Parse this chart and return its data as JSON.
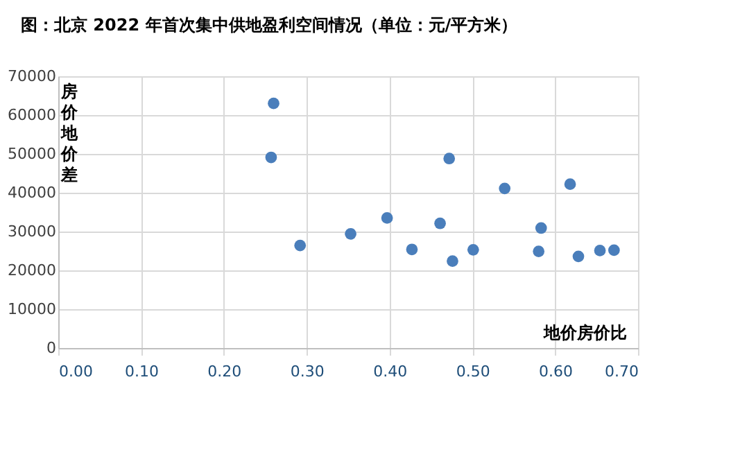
{
  "chart_data": {
    "type": "scatter",
    "title": "图：北京 2022 年首次集中供地盈利空间情况（单位：元/平方米）",
    "xlabel": "地价房价比",
    "ylabel": "房价地价差",
    "x": [
      0.26,
      0.257,
      0.292,
      0.353,
      0.397,
      0.427,
      0.461,
      0.472,
      0.476,
      0.501,
      0.539,
      0.58,
      0.583,
      0.618,
      0.628,
      0.654,
      0.671
    ],
    "series": [
      {
        "color": "#4a7ebb",
        "values": [
          63000,
          49100,
          26400,
          29400,
          33500,
          25400,
          32100,
          48800,
          22400,
          25300,
          41100,
          24900,
          30900,
          42200,
          23600,
          25100,
          25200
        ]
      }
    ],
    "xlim": [
      0,
      0.7
    ],
    "xticks": [
      {
        "value": 0,
        "label": "0.00"
      },
      {
        "value": 0.1,
        "label": "0.10"
      },
      {
        "value": 0.2,
        "label": "0.20"
      },
      {
        "value": 0.3,
        "label": "0.30"
      },
      {
        "value": 0.4,
        "label": "0.40"
      },
      {
        "value": 0.5,
        "label": "0.50"
      },
      {
        "value": 0.6,
        "label": "0.60"
      },
      {
        "value": 0.7,
        "label": "0.70"
      }
    ],
    "ylim": [
      0,
      70000
    ],
    "yticks": [
      0,
      10000,
      20000,
      30000,
      40000,
      50000,
      60000,
      70000
    ],
    "grid": true,
    "marker": "circle",
    "legend": false
  }
}
